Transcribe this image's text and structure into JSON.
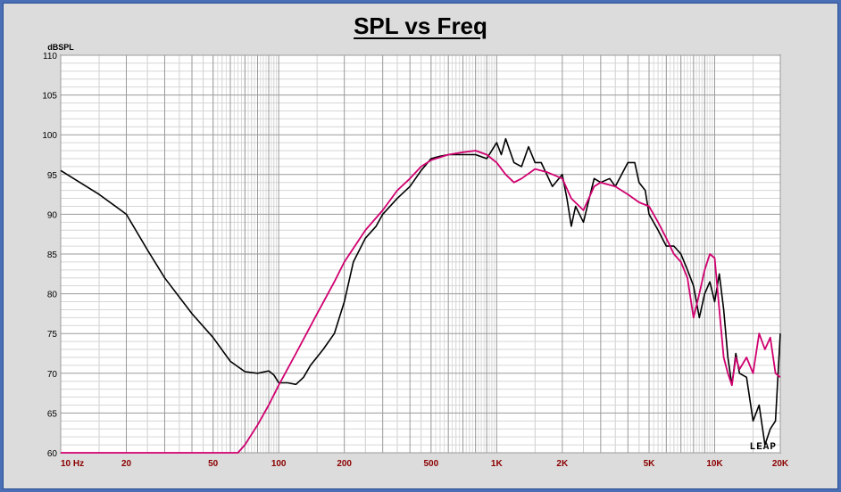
{
  "chart_data": {
    "type": "line",
    "title": "SPL vs Freq",
    "ylabel": "dBSPL",
    "xlabel": "",
    "x_scale": "log",
    "xlim": [
      10,
      20000
    ],
    "ylim": [
      60,
      110
    ],
    "y_ticks": [
      "110",
      "105",
      "100",
      "95",
      "90",
      "85",
      "80",
      "75",
      "70",
      "65",
      "60"
    ],
    "y_tick_values": [
      110,
      105,
      100,
      95,
      90,
      85,
      80,
      75,
      70,
      65,
      60
    ],
    "x_tick_labels": [
      "10 Hz",
      "20",
      "50",
      "100",
      "200",
      "500",
      "1K",
      "2K",
      "5K",
      "10K",
      "20K"
    ],
    "x_tick_values": [
      10,
      20,
      50,
      100,
      200,
      500,
      1000,
      2000,
      5000,
      10000,
      20000
    ],
    "grid": true,
    "logo_text": "LEAP",
    "series": [
      {
        "color": "#000000",
        "x": [
          10,
          15,
          20,
          25,
          30,
          40,
          50,
          60,
          70,
          80,
          90,
          95,
          100,
          110,
          120,
          130,
          140,
          160,
          180,
          200,
          220,
          250,
          280,
          300,
          350,
          400,
          450,
          500,
          550,
          600,
          700,
          800,
          900,
          1000,
          1050,
          1100,
          1200,
          1300,
          1400,
          1500,
          1600,
          1800,
          2000,
          2100,
          2200,
          2300,
          2500,
          2800,
          3000,
          3300,
          3500,
          4000,
          4300,
          4500,
          4800,
          5000,
          5500,
          6000,
          6500,
          7000,
          7500,
          8000,
          8500,
          9000,
          9500,
          10000,
          10500,
          11000,
          11500,
          12000,
          12500,
          13000,
          14000,
          15000,
          16000,
          17000,
          18000,
          19000,
          20000
        ],
        "y": [
          95.5,
          92.5,
          90.0,
          85.5,
          82.0,
          77.5,
          74.5,
          71.5,
          70.2,
          70.0,
          70.3,
          69.8,
          68.8,
          68.8,
          68.6,
          69.5,
          71.0,
          73.0,
          75.0,
          79.0,
          84.0,
          87.0,
          88.5,
          90.0,
          92.0,
          93.5,
          95.5,
          97.0,
          97.3,
          97.5,
          97.5,
          97.5,
          97.0,
          99.0,
          97.5,
          99.5,
          96.5,
          96.0,
          98.5,
          96.5,
          96.5,
          93.5,
          95.0,
          92.0,
          88.5,
          91.0,
          89.0,
          94.5,
          94.0,
          94.5,
          93.5,
          96.5,
          96.5,
          94.0,
          93.0,
          90.0,
          88.0,
          86.0,
          86.0,
          85.0,
          83.0,
          81.0,
          77.0,
          80.0,
          81.5,
          79.0,
          82.5,
          78.0,
          72.0,
          68.5,
          72.5,
          70.0,
          69.5,
          64.0,
          66.0,
          61.0,
          63.0,
          64.0,
          75.0
        ]
      },
      {
        "color": "#d0006f",
        "x": [
          10,
          20,
          50,
          65,
          70,
          80,
          90,
          100,
          120,
          150,
          180,
          200,
          250,
          300,
          350,
          400,
          450,
          500,
          600,
          700,
          800,
          900,
          1000,
          1100,
          1200,
          1300,
          1500,
          1700,
          2000,
          2200,
          2500,
          2800,
          3000,
          3500,
          4000,
          4500,
          5000,
          5500,
          6000,
          6500,
          7000,
          7500,
          8000,
          8500,
          9000,
          9500,
          10000,
          10500,
          11000,
          11500,
          12000,
          12500,
          13000,
          14000,
          15000,
          16000,
          17000,
          18000,
          19000,
          20000
        ],
        "y": [
          60.0,
          60.0,
          60.0,
          60.0,
          61.0,
          63.5,
          66.0,
          68.5,
          72.5,
          77.5,
          81.5,
          84.0,
          88.0,
          90.5,
          93.0,
          94.5,
          96.0,
          96.8,
          97.5,
          97.8,
          98.0,
          97.5,
          96.5,
          95.0,
          94.0,
          94.5,
          95.7,
          95.3,
          94.5,
          92.0,
          90.5,
          93.5,
          94.0,
          93.5,
          92.5,
          91.5,
          91.0,
          89.0,
          87.0,
          85.0,
          84.0,
          82.0,
          77.0,
          80.0,
          83.0,
          85.0,
          84.5,
          78.0,
          72.0,
          70.0,
          68.5,
          72.0,
          70.5,
          72.0,
          70.0,
          75.0,
          73.0,
          74.5,
          70.0,
          69.5
        ]
      }
    ]
  }
}
